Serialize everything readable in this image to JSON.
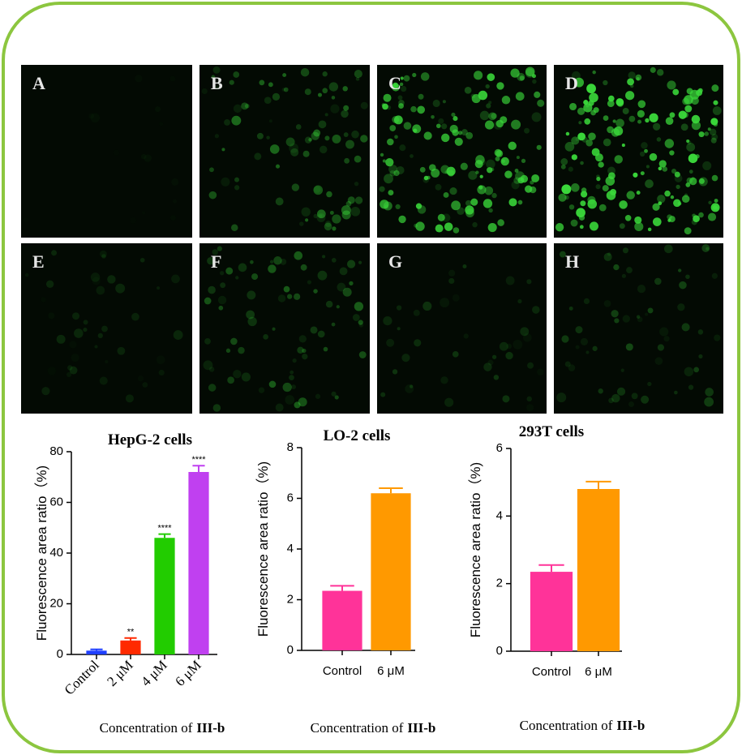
{
  "panels": [
    "A",
    "B",
    "C",
    "D",
    "E",
    "F",
    "G",
    "H"
  ],
  "chart_data": [
    {
      "type": "bar",
      "title": "HepG-2 cells",
      "ylabel": "Fluorescence area ratio（%)",
      "xlabel": "Concentration of",
      "xlabel_bold": "III-b",
      "categories": [
        "Control",
        "2 μM",
        "4 μM",
        "6 μM"
      ],
      "values": [
        1.5,
        5.5,
        46,
        72
      ],
      "errors": [
        0.5,
        1,
        1.5,
        2.5
      ],
      "colors": [
        "#1f3fff",
        "#ff2a00",
        "#22cc00",
        "#c040f0"
      ],
      "annotations": [
        null,
        "**",
        "****",
        "****"
      ],
      "ylim": [
        0,
        80
      ],
      "yticks": [
        0,
        20,
        40,
        60,
        80
      ]
    },
    {
      "type": "bar",
      "title": "LO-2 cells",
      "ylabel": "Fluorescence area ratio（%)",
      "xlabel": "Concentration of",
      "xlabel_bold": "III-b",
      "categories": [
        "Control",
        "6 μM"
      ],
      "values": [
        2.35,
        6.2
      ],
      "errors": [
        0.2,
        0.2
      ],
      "colors": [
        "#ff3399",
        "#ff9900"
      ],
      "ylim": [
        0,
        8
      ],
      "yticks": [
        0,
        2,
        4,
        6,
        8
      ]
    },
    {
      "type": "bar",
      "title": "293T cells",
      "ylabel": "Fluorescence area ratio（%)",
      "xlabel": "Concentration of",
      "xlabel_bold": "III-b",
      "categories": [
        "Control",
        "6 μM"
      ],
      "values": [
        2.35,
        4.8
      ],
      "errors": [
        0.2,
        0.22
      ],
      "colors": [
        "#ff3399",
        "#ff9900"
      ],
      "ylim": [
        0,
        6
      ],
      "yticks": [
        0,
        2,
        4,
        6
      ]
    }
  ]
}
